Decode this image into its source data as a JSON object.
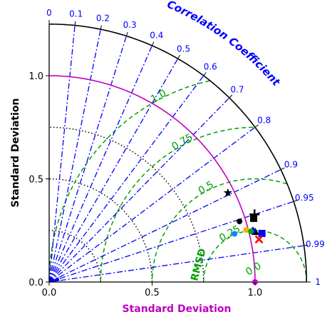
{
  "chart_data": {
    "type": "scatter",
    "subtype": "taylor-diagram",
    "reference": {
      "std": 1.0,
      "correlation": 1.0
    },
    "std_ticks": [
      0.0,
      0.5,
      1.0
    ],
    "std_tick_labels": [
      "0.0",
      "0.5",
      "1.0"
    ],
    "xlabel": "Standard Deviation",
    "ylabel": "Standard Deviation",
    "corr_title": "Correlation Coefficient",
    "rmsd_title": "RMSD",
    "rlim": [
      0,
      1.25
    ],
    "corr_ticks": [
      0,
      0.1,
      0.2,
      0.3,
      0.4,
      0.5,
      0.6,
      0.7,
      0.8,
      0.9,
      0.95,
      0.99,
      1
    ],
    "corr_tick_labels": [
      "0",
      "0.1",
      "0.2",
      "0.3",
      "0.4",
      "0.5",
      "0.6",
      "0.7",
      "0.8",
      "0.9",
      "0.95",
      "0.99",
      "1"
    ],
    "rmsd_contours": [
      0.25,
      0.5,
      0.75,
      1.0
    ],
    "rmsd_labels": [
      "0.0",
      "0.25",
      "0.5",
      "0.75",
      "1.0"
    ],
    "std_dotted_arcs": [
      0.25,
      0.5,
      0.75
    ],
    "points": [
      {
        "std": 0.97,
        "corr": 0.895,
        "marker": "star",
        "color": "#000000"
      },
      {
        "std": 1.05,
        "corr": 0.95,
        "marker": "plus",
        "color": "#000000"
      },
      {
        "std": 1.04,
        "corr": 0.955,
        "marker": "square",
        "color": "#000000"
      },
      {
        "std": 0.97,
        "corr": 0.953,
        "marker": "circle",
        "color": "#000000"
      },
      {
        "std": 1.03,
        "corr": 0.972,
        "marker": "triangle",
        "color": "#000000"
      },
      {
        "std": 1.06,
        "corr": 0.975,
        "marker": "square",
        "color": "#0000ff"
      },
      {
        "std": 1.02,
        "corr": 0.97,
        "marker": "diamond",
        "color": "#0000ff"
      },
      {
        "std": 1.04,
        "corr": 0.98,
        "marker": "x",
        "color": "#ff0000"
      },
      {
        "std": 0.99,
        "corr": 0.967,
        "marker": "circle",
        "color": "#ffaa00"
      },
      {
        "std": 1.01,
        "corr": 0.97,
        "marker": "circle",
        "color": "#00aa00"
      },
      {
        "std": 0.93,
        "corr": 0.968,
        "marker": "circle",
        "color": "#0088ff"
      }
    ],
    "colors": {
      "axis": "#000000",
      "corr": "#0000ff",
      "rmsd": "#00a000",
      "reference": "#c000c0",
      "std_arcs": "#000000"
    }
  }
}
